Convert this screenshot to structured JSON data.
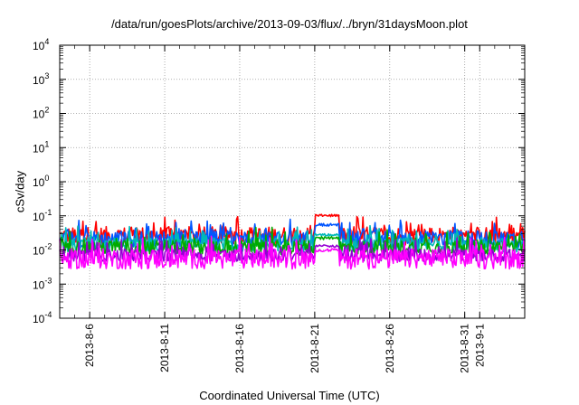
{
  "chart_data": {
    "type": "line",
    "title": "/data/run/goesPlots/archive/2013-09-03/flux/../bryn/31daysMoon.plot",
    "xlabel": "Coordinated Universal Time (UTC)",
    "ylabel": "cSv/day",
    "yscale": "log",
    "ylim": [
      0.0001,
      10000
    ],
    "ytick_exponents": [
      "-4",
      "-3",
      "-2",
      "-1",
      "0",
      "1",
      "2",
      "3",
      "4"
    ],
    "ytick_base": "10",
    "xlim_days": [
      "2013-08-04",
      "2013-09-04"
    ],
    "xticks": [
      "2013-8-6",
      "2013-8-11",
      "2013-8-16",
      "2013-8-21",
      "2013-8-26",
      "2013-8-31",
      "2013-9-1"
    ],
    "grid": true,
    "legend": "none",
    "series": [
      {
        "color": "#ff0000",
        "baseline": 0.026,
        "spread": 0.09,
        "spike": [
          0.095,
          0.11
        ]
      },
      {
        "color": "#0055ff",
        "baseline": 0.021,
        "spread": 0.08,
        "spike": [
          0.05,
          0.06
        ]
      },
      {
        "color": "#00b8b8",
        "baseline": 0.014,
        "spread": 0.07,
        "spike": [
          0.025,
          0.03
        ]
      },
      {
        "color": "#00aa00",
        "baseline": 0.012,
        "spread": 0.07,
        "spike": [
          0.02,
          0.025
        ]
      },
      {
        "color": "#9400d3",
        "baseline": 0.007,
        "spread": 0.06,
        "spike": [
          0.012,
          0.014
        ]
      },
      {
        "color": "#ff00ff",
        "baseline": 0.0055,
        "spread": 0.1,
        "spike": [
          0.009,
          0.011
        ]
      }
    ]
  }
}
